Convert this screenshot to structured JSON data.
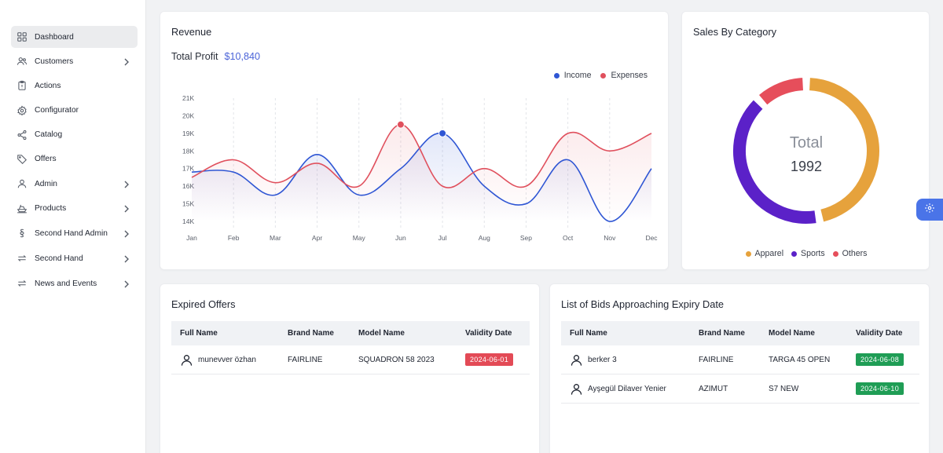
{
  "sidebar": {
    "items": [
      {
        "label": "Dashboard",
        "icon": "grid-icon",
        "active": true,
        "chevron": false
      },
      {
        "label": "Customers",
        "icon": "users-icon",
        "active": false,
        "chevron": true
      },
      {
        "label": "Actions",
        "icon": "clipboard-icon",
        "active": false,
        "chevron": false
      },
      {
        "label": "Configurator",
        "icon": "gear-icon",
        "active": false,
        "chevron": false
      },
      {
        "label": "Catalog",
        "icon": "share-icon",
        "active": false,
        "chevron": false
      },
      {
        "label": "Offers",
        "icon": "tag-icon",
        "active": false,
        "chevron": false
      },
      {
        "label": "Admin",
        "icon": "user-icon",
        "active": false,
        "chevron": true
      },
      {
        "label": "Products",
        "icon": "boat-icon",
        "active": false,
        "chevron": true
      },
      {
        "label": "Second Hand Admin",
        "icon": "section-icon",
        "active": false,
        "chevron": true
      },
      {
        "label": "Second Hand",
        "icon": "swap-icon",
        "active": false,
        "chevron": true
      },
      {
        "label": "News and Events",
        "icon": "swap-icon",
        "active": false,
        "chevron": true
      }
    ]
  },
  "revenue": {
    "title": "Revenue",
    "profit_label": "Total Profit",
    "profit_value": "$10,840"
  },
  "chart_data": {
    "type": "area",
    "title": "Revenue",
    "categories": [
      "Jan",
      "Feb",
      "Mar",
      "Apr",
      "May",
      "Jun",
      "Jul",
      "Aug",
      "Sep",
      "Oct",
      "Nov",
      "Dec"
    ],
    "series": [
      {
        "name": "Income",
        "color": "#2f56d4",
        "values": [
          16.8,
          16.8,
          15.5,
          17.8,
          15.5,
          17.0,
          19.0,
          16.0,
          15.0,
          17.5,
          14.0,
          17.0
        ]
      },
      {
        "name": "Expenses",
        "color": "#e0505d",
        "values": [
          16.5,
          17.5,
          16.2,
          17.3,
          16.0,
          19.5,
          16.0,
          17.0,
          16.0,
          19.0,
          18.0,
          19.0
        ]
      }
    ],
    "highlight": [
      {
        "series": "Expenses",
        "category": "Jun"
      },
      {
        "series": "Income",
        "category": "Jul"
      }
    ],
    "y_ticks": [
      "14K",
      "15K",
      "16K",
      "17K",
      "18K",
      "19K",
      "20K",
      "21K"
    ],
    "ylim": [
      14,
      21
    ],
    "legend": "top-right"
  },
  "category": {
    "title": "Sales By Category",
    "total_label": "Total",
    "total_value": "1992",
    "segments": [
      {
        "name": "Apparel",
        "color": "#e6a23c",
        "share": 0.47
      },
      {
        "name": "Sports",
        "color": "#5b21c8",
        "share": 0.41
      },
      {
        "name": "Others",
        "color": "#e64e5b",
        "share": 0.12
      }
    ]
  },
  "expired": {
    "title": "Expired Offers",
    "columns": [
      "Full Name",
      "Brand Name",
      "Model Name",
      "Validity Date"
    ],
    "rows": [
      {
        "name": "munevver özhan",
        "brand": "FAIRLINE",
        "model": "SQUADRON 58 2023",
        "date": "2024-06-01",
        "badge_color": "#e34a56"
      }
    ]
  },
  "bids": {
    "title": "List of Bids Approaching Expiry Date",
    "columns": [
      "Full Name",
      "Brand Name",
      "Model Name",
      "Validity Date"
    ],
    "rows": [
      {
        "name": "berker 3",
        "brand": "FAIRLINE",
        "model": "TARGA 45 OPEN",
        "date": "2024-06-08",
        "badge_color": "#1f9d55"
      },
      {
        "name": "Ayşegül Dilaver Yenier",
        "brand": "AZIMUT",
        "model": "S7 NEW",
        "date": "2024-06-10",
        "badge_color": "#1f9d55"
      }
    ]
  }
}
